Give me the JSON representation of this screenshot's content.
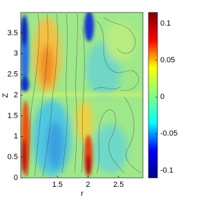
{
  "chart_data": {
    "type": "heatmap",
    "xlabel": "r",
    "ylabel": "Z",
    "xlim": [
      0.9,
      2.9
    ],
    "ylim": [
      0,
      4
    ],
    "xticks": [
      1.5,
      2,
      2.5
    ],
    "yticks": [
      0,
      0.5,
      1,
      1.5,
      2,
      2.5,
      3,
      3.5
    ],
    "colormap": "jet",
    "clim": [
      -0.11,
      0.115
    ],
    "cticks": [
      -0.1,
      -0.05,
      0,
      0.05,
      0.1
    ]
  }
}
